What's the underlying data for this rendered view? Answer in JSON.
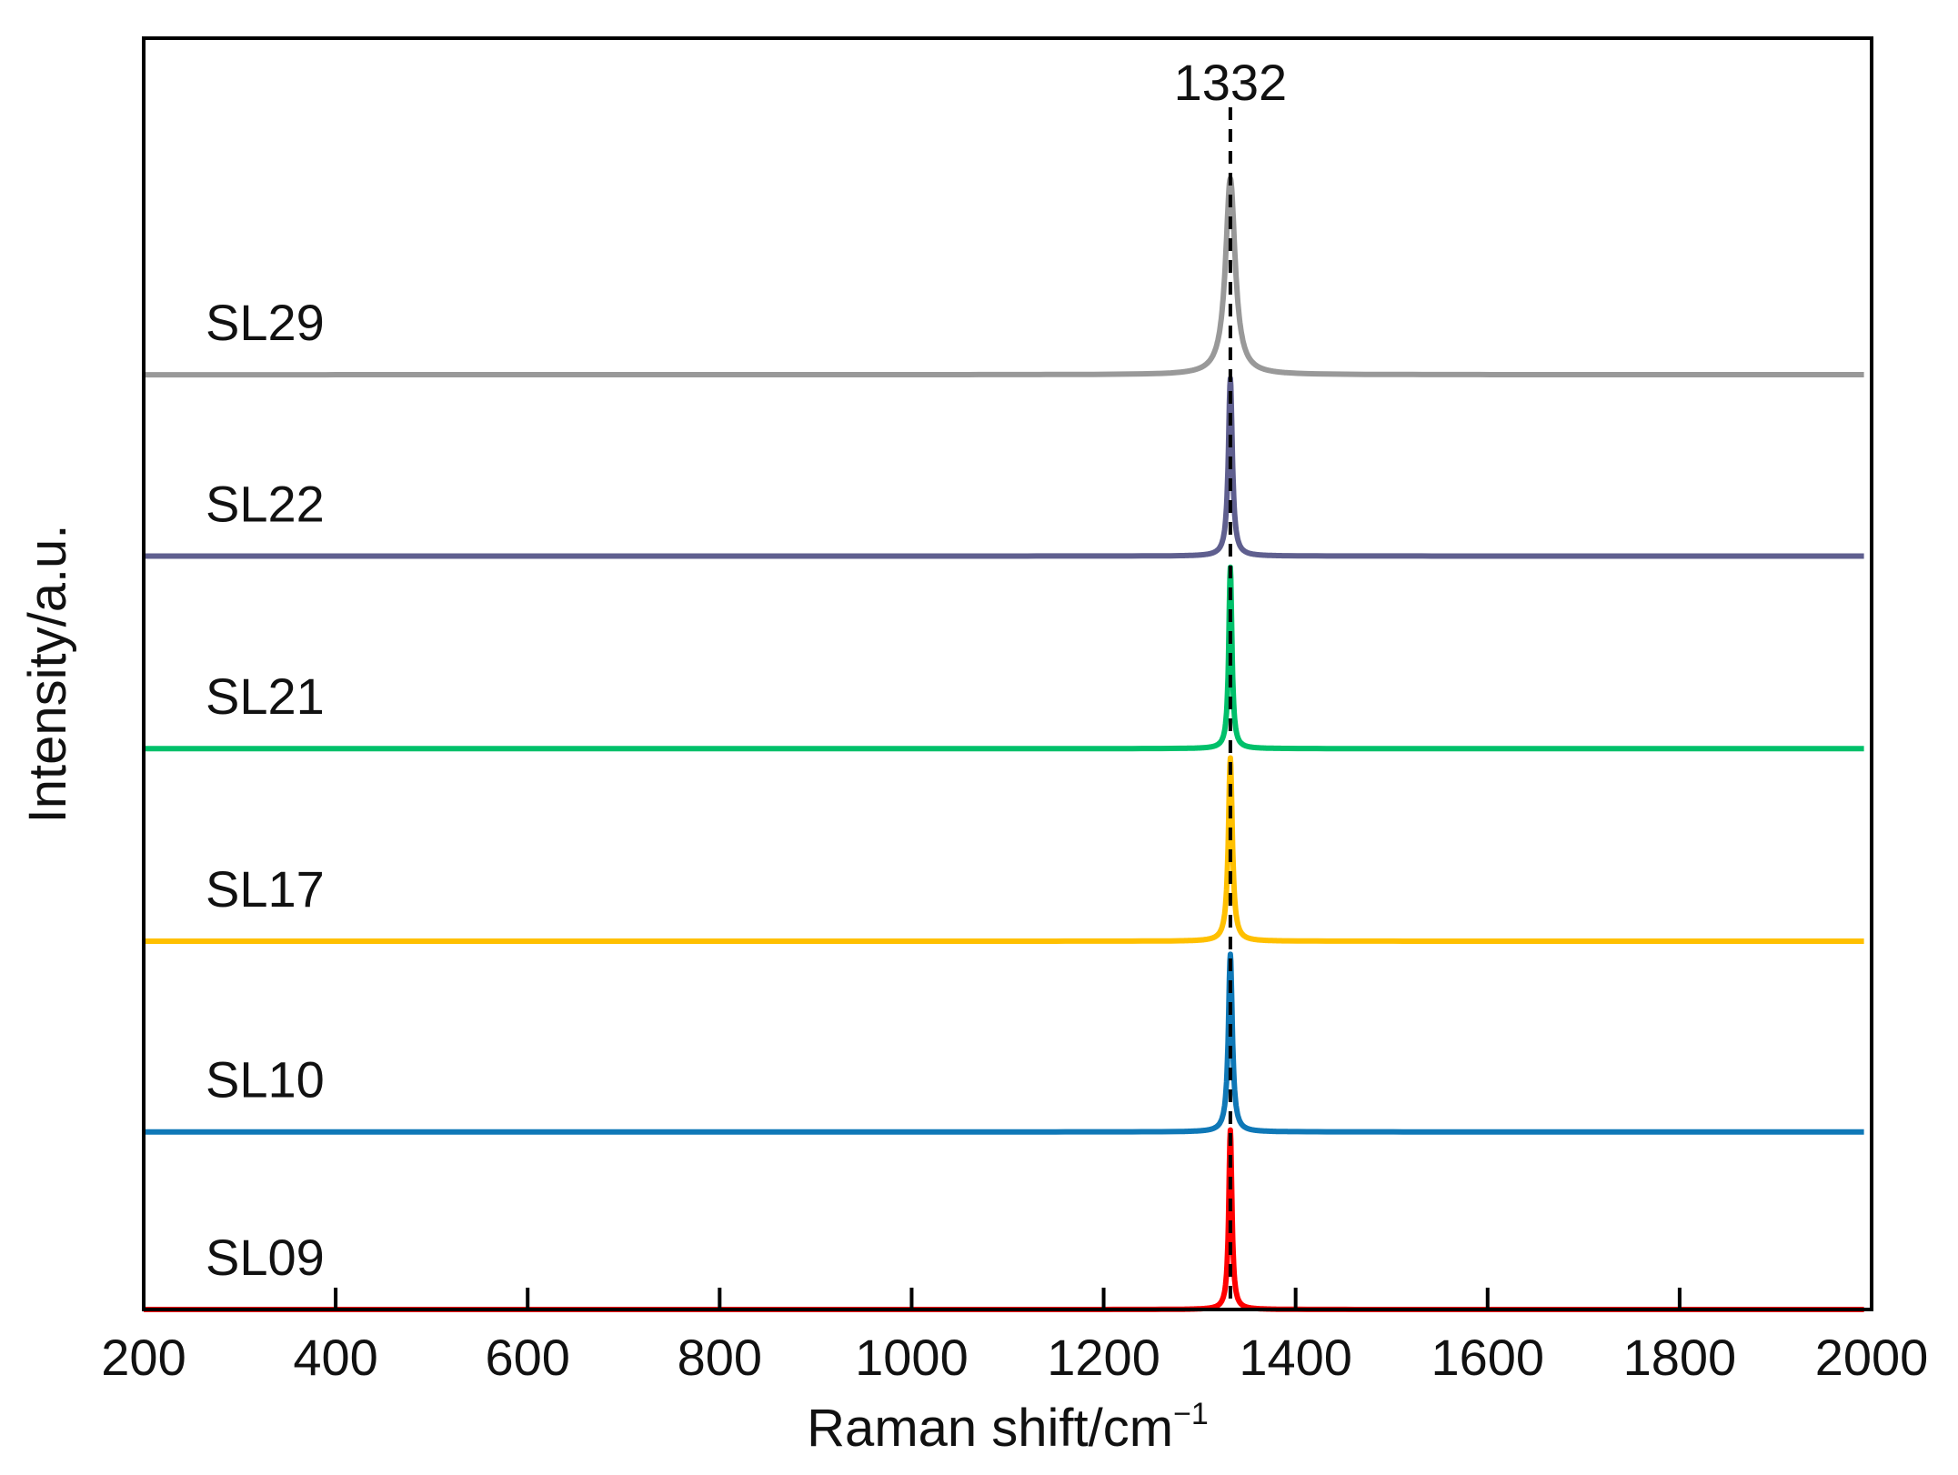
{
  "chart_data": {
    "type": "line",
    "title": "",
    "xlabel": "Raman shift/cm",
    "xlabel_superscript": "−1",
    "ylabel": "Intensity/a.u.",
    "xlim": [
      200,
      2000
    ],
    "ylim": [
      0,
      6.8
    ],
    "x_ticks": [
      "200",
      "400",
      "600",
      "800",
      "1000",
      "1200",
      "1400",
      "1600",
      "1800",
      "2000"
    ],
    "y_ticks_shown": false,
    "grid": false,
    "legend": "none",
    "reference_line": {
      "x": 1332,
      "label": "1332",
      "style": "dashed",
      "color": "#000000"
    },
    "series": [
      {
        "name": "SL09",
        "color": "#ff0000",
        "baseline": 0.0,
        "peak_x": 1332,
        "peak_height": 0.96,
        "fwhm": 4
      },
      {
        "name": "SL10",
        "color": "#0f78b7",
        "baseline": 0.95,
        "peak_x": 1332,
        "peak_height": 0.95,
        "fwhm": 5
      },
      {
        "name": "SL17",
        "color": "#ffc000",
        "baseline": 1.97,
        "peak_x": 1332,
        "peak_height": 0.98,
        "fwhm": 5
      },
      {
        "name": "SL21",
        "color": "#00c06a",
        "baseline": 3.0,
        "peak_x": 1332,
        "peak_height": 0.97,
        "fwhm": 4
      },
      {
        "name": "SL22",
        "color": "#5f5f8f",
        "baseline": 4.03,
        "peak_x": 1332,
        "peak_height": 0.95,
        "fwhm": 5
      },
      {
        "name": "SL29",
        "color": "#999999",
        "baseline": 5.0,
        "peak_x": 1332,
        "peak_height": 1.05,
        "fwhm": 12
      }
    ]
  }
}
